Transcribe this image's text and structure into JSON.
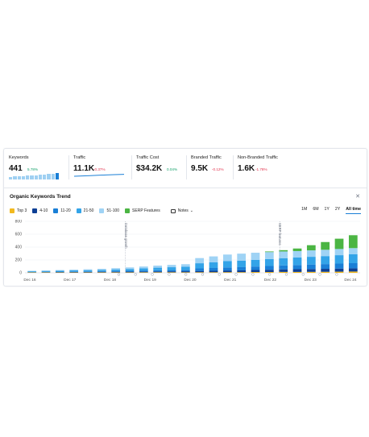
{
  "metrics": [
    {
      "label": "Keywords",
      "value": "441",
      "change": "5.78%",
      "direction": "up"
    },
    {
      "label": "Traffic",
      "value": "11.1K",
      "change": "-0.37%",
      "direction": "down"
    },
    {
      "label": "Traffic Cost",
      "value": "$34.2K",
      "change": "0.04%",
      "direction": "up"
    },
    {
      "label": "Branded Traffic",
      "value": "9.5K",
      "change": "-0.12%",
      "direction": "down"
    },
    {
      "label": "Non-Branded Traffic",
      "value": "1.6K",
      "change": "-1.78%",
      "direction": "down"
    }
  ],
  "trend": {
    "title": "Organic Keywords Trend",
    "close_icon": "close-icon",
    "legend": [
      {
        "label": "Top 3",
        "color": "#f2b91f"
      },
      {
        "label": "4-10",
        "color": "#0d3f95"
      },
      {
        "label": "11-20",
        "color": "#1a7fd6"
      },
      {
        "label": "21-50",
        "color": "#33a4e8"
      },
      {
        "label": "51-100",
        "color": "#9fd3f5"
      },
      {
        "label": "SERP Features",
        "color": "#4bb543"
      }
    ],
    "notes_label": "Notes",
    "ranges": [
      "1M",
      "6M",
      "1Y",
      "2Y",
      "All time"
    ],
    "active_range": "All time"
  },
  "chart_data": {
    "type": "bar",
    "stacked": true,
    "title": "",
    "xlabel": "",
    "ylabel": "",
    "ylim": [
      0,
      800
    ],
    "yticks": [
      0,
      200,
      400,
      600,
      800
    ],
    "x_tick_labels": [
      "Dec 16",
      "Dec 17",
      "Dec 18",
      "Dec 19",
      "Dec 20",
      "Dec 21",
      "Dec 22",
      "Dec 23",
      "Dec 24"
    ],
    "annotations": [
      {
        "text": "Database growth",
        "near": "Dec 18"
      },
      {
        "text": "SERP features",
        "near": "Dec 22"
      }
    ],
    "series": [
      {
        "name": "Top 3",
        "values": [
          6,
          6,
          6,
          6,
          6,
          7,
          7,
          7,
          8,
          8,
          8,
          8,
          9,
          9,
          10,
          10,
          12,
          12,
          14,
          14,
          15,
          16,
          18,
          20
        ]
      },
      {
        "name": "4-10",
        "values": [
          4,
          5,
          6,
          7,
          8,
          9,
          10,
          11,
          12,
          14,
          15,
          16,
          20,
          22,
          26,
          28,
          32,
          36,
          40,
          42,
          44,
          46,
          48,
          50
        ]
      },
      {
        "name": "11-20",
        "values": [
          5,
          6,
          7,
          8,
          9,
          10,
          12,
          14,
          16,
          18,
          20,
          22,
          40,
          44,
          48,
          50,
          54,
          58,
          62,
          66,
          70,
          74,
          78,
          80
        ]
      },
      {
        "name": "21-50",
        "values": [
          10,
          12,
          14,
          16,
          18,
          20,
          24,
          28,
          34,
          40,
          44,
          48,
          80,
          90,
          100,
          100,
          104,
          108,
          112,
          116,
          120,
          124,
          130,
          140
        ]
      },
      {
        "name": "51-100",
        "values": [
          6,
          8,
          10,
          12,
          14,
          16,
          20,
          24,
          28,
          32,
          36,
          40,
          80,
          90,
          100,
          110,
          110,
          108,
          104,
          100,
          100,
          98,
          96,
          94
        ]
      },
      {
        "name": "SERP Features",
        "values": [
          0,
          0,
          0,
          0,
          0,
          0,
          0,
          0,
          0,
          0,
          0,
          0,
          0,
          0,
          0,
          0,
          0,
          10,
          20,
          40,
          80,
          120,
          160,
          200
        ]
      }
    ]
  }
}
